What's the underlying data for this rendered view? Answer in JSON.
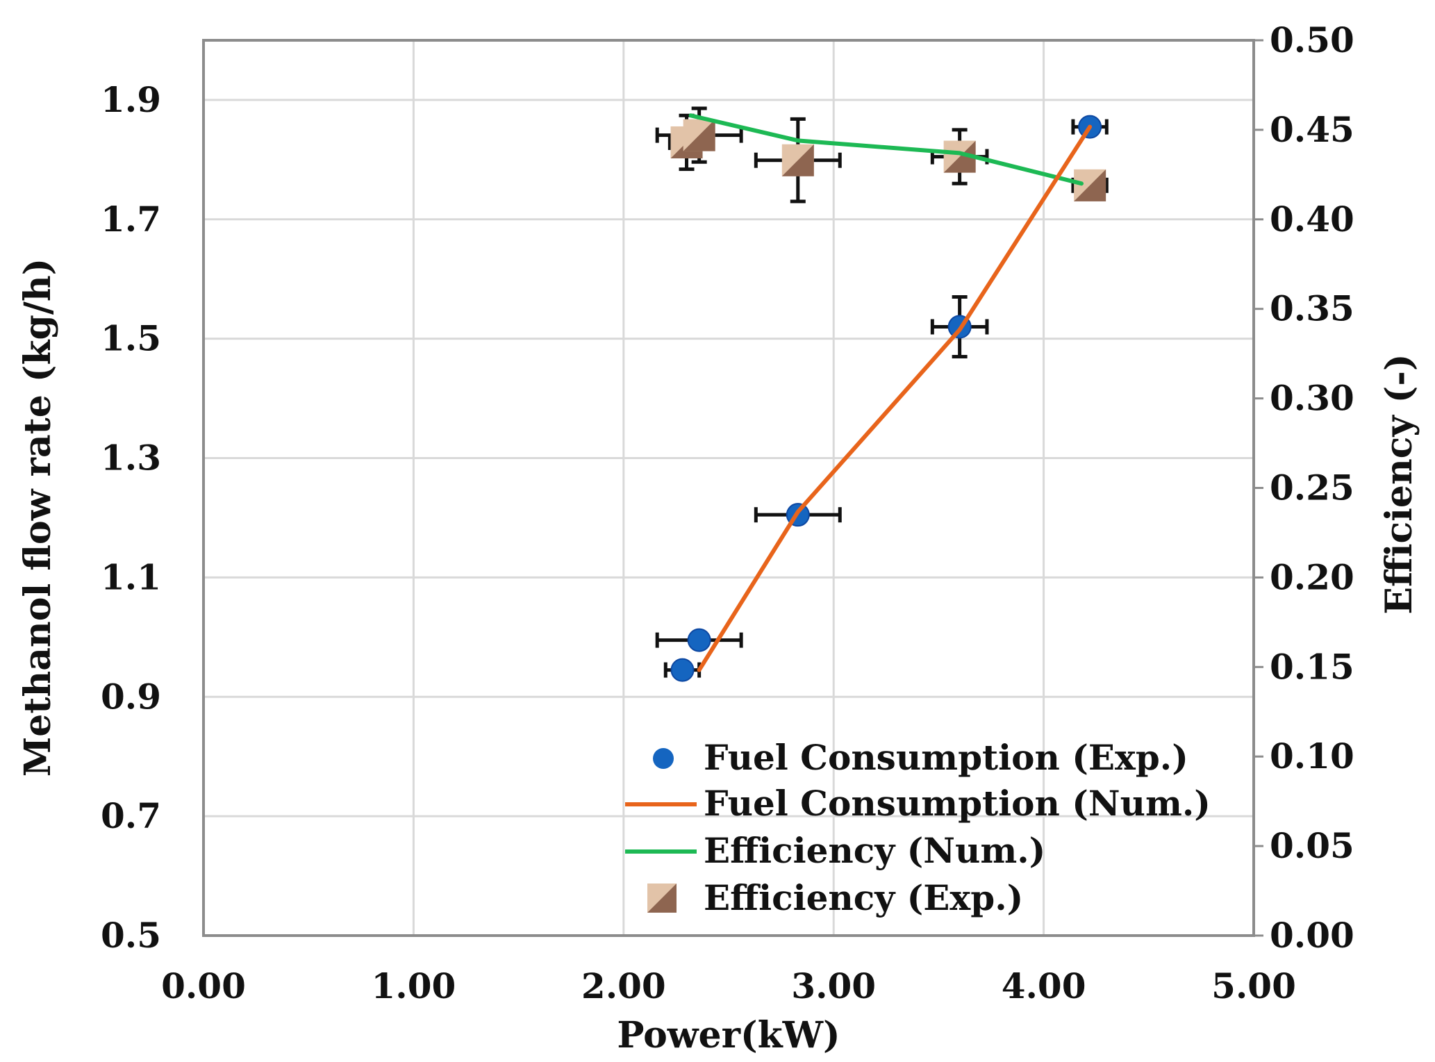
{
  "chart_data": {
    "type": "scatter",
    "title": "",
    "xlabel": "Power(kW)",
    "ylabel": "Methanol flow rate (kg/h)",
    "y2label": "Efficiency (-)",
    "xlim": [
      0,
      5
    ],
    "ylim": [
      0.5,
      2.0
    ],
    "y2lim": [
      0,
      0.5
    ],
    "grid": true,
    "legend_position": "bottom-right",
    "x_ticks": [
      "0.00",
      "1.00",
      "2.00",
      "3.00",
      "4.00",
      "5.00"
    ],
    "y_ticks": [
      "0.5",
      "0.7",
      "0.9",
      "1.1",
      "1.3",
      "1.5",
      "1.7",
      "1.9"
    ],
    "y2_ticks": [
      "0.00",
      "0.05",
      "0.10",
      "0.15",
      "0.20",
      "0.25",
      "0.30",
      "0.35",
      "0.40",
      "0.45",
      "0.50"
    ],
    "series": [
      {
        "name": "Fuel Consumption (Exp.)",
        "kind": "scatter",
        "axis": "left",
        "marker": "circle",
        "color": "#1565C0",
        "points": [
          {
            "x": 2.28,
            "y": 0.945,
            "xerr": 0.08,
            "yerr": 0
          },
          {
            "x": 2.36,
            "y": 0.995,
            "xerr": 0.2,
            "yerr": 0
          },
          {
            "x": 2.83,
            "y": 1.205,
            "xerr": 0.2,
            "yerr": 0
          },
          {
            "x": 3.6,
            "y": 1.52,
            "xerr": 0.13,
            "yerr": 0.05
          },
          {
            "x": 4.22,
            "y": 1.855,
            "xerr": 0.08,
            "yerr": 0
          }
        ]
      },
      {
        "name": "Fuel Consumption (Num.)",
        "kind": "line",
        "axis": "left",
        "color": "#E8641B",
        "points": [
          {
            "x": 2.36,
            "y": 0.945
          },
          {
            "x": 2.83,
            "y": 1.21
          },
          {
            "x": 3.6,
            "y": 1.515
          },
          {
            "x": 4.22,
            "y": 1.855
          }
        ]
      },
      {
        "name": "Efficiency (Num.)",
        "kind": "line",
        "axis": "right",
        "color": "#1DB954",
        "points": [
          {
            "x": 2.32,
            "y": 0.458
          },
          {
            "x": 2.83,
            "y": 0.444
          },
          {
            "x": 3.6,
            "y": 0.437
          },
          {
            "x": 4.18,
            "y": 0.42
          }
        ]
      },
      {
        "name": "Efficiency (Exp.)",
        "kind": "scatter",
        "axis": "right",
        "marker": "square",
        "color": "#C9A07E",
        "points": [
          {
            "x": 2.3,
            "y": 0.443,
            "xerr": 0.08,
            "yerr": 0.015
          },
          {
            "x": 2.36,
            "y": 0.447,
            "xerr": 0.2,
            "yerr": 0.015
          },
          {
            "x": 2.83,
            "y": 0.433,
            "xerr": 0.2,
            "yerr": 0.023
          },
          {
            "x": 3.6,
            "y": 0.435,
            "xerr": 0.13,
            "yerr": 0.015
          },
          {
            "x": 4.22,
            "y": 0.419,
            "xerr": 0.08,
            "yerr": 0
          }
        ]
      }
    ]
  }
}
